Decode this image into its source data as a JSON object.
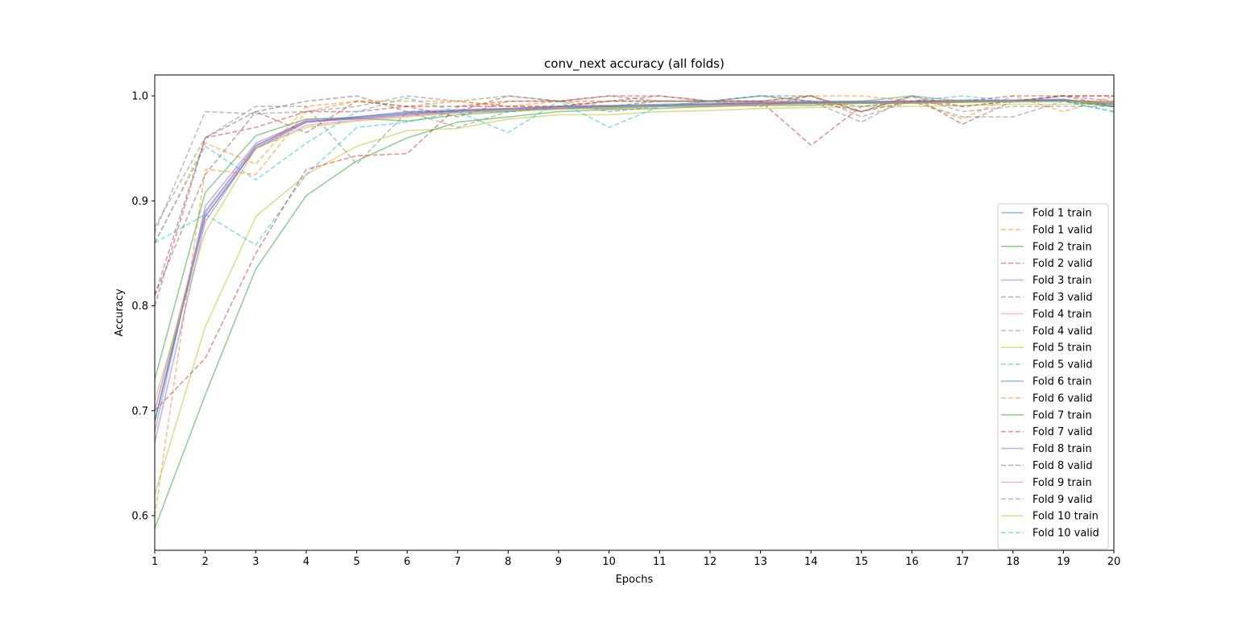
{
  "chart_data": {
    "type": "line",
    "title": "conv_next accuracy (all folds)",
    "xlabel": "Epochs",
    "ylabel": "Accuracy",
    "xlim": [
      1,
      20
    ],
    "ylim": [
      0.567,
      1.02
    ],
    "x_ticks": [
      1,
      2,
      3,
      4,
      5,
      6,
      7,
      8,
      9,
      10,
      11,
      12,
      13,
      14,
      15,
      16,
      17,
      18,
      19,
      20
    ],
    "y_ticks": [
      0.6,
      0.7,
      0.8,
      0.9,
      1.0
    ],
    "y_tick_labels": [
      "0.6",
      "0.7",
      "0.8",
      "0.9",
      "1.0"
    ],
    "grid": false,
    "legend_position": "lower-right",
    "x": [
      1,
      2,
      3,
      4,
      5,
      6,
      7,
      8,
      9,
      10,
      11,
      12,
      13,
      14,
      15,
      16,
      17,
      18,
      19,
      20
    ],
    "series": [
      {
        "name": "Fold 1 train",
        "color": "#1f77b4",
        "style": "solid",
        "values": [
          0.69,
          0.89,
          0.953,
          0.975,
          0.98,
          0.984,
          0.986,
          0.988,
          0.99,
          0.991,
          0.992,
          0.993,
          0.994,
          0.994,
          0.995,
          0.995,
          0.996,
          0.996,
          0.997,
          0.99
        ]
      },
      {
        "name": "Fold 1 valid",
        "color": "#ff7f0e",
        "style": "dashed",
        "values": [
          0.6,
          0.93,
          0.925,
          0.985,
          0.995,
          0.99,
          0.995,
          0.99,
          0.995,
          0.99,
          0.995,
          0.995,
          0.995,
          1.0,
          1.0,
          0.995,
          0.978,
          1.0,
          0.985,
          1.0
        ]
      },
      {
        "name": "Fold 2 train",
        "color": "#2ca02c",
        "style": "solid",
        "values": [
          0.73,
          0.908,
          0.962,
          0.978,
          0.979,
          0.976,
          0.982,
          0.985,
          0.988,
          0.988,
          0.99,
          0.99,
          0.992,
          0.993,
          0.993,
          0.994,
          0.995,
          0.995,
          0.996,
          0.992
        ]
      },
      {
        "name": "Fold 2 valid",
        "color": "#d62728",
        "style": "dashed",
        "values": [
          0.8,
          0.96,
          0.97,
          0.985,
          0.985,
          0.99,
          0.99,
          0.995,
          0.995,
          1.0,
          1.0,
          0.995,
          0.995,
          0.953,
          0.99,
          0.995,
          0.99,
          0.995,
          1.0,
          1.0
        ]
      },
      {
        "name": "Fold 3 train",
        "color": "#9467bd",
        "style": "solid",
        "values": [
          0.68,
          0.895,
          0.955,
          0.976,
          0.978,
          0.982,
          0.985,
          0.987,
          0.988,
          0.99,
          0.991,
          0.992,
          0.993,
          0.994,
          0.994,
          0.995,
          0.995,
          0.996,
          0.996,
          0.993
        ]
      },
      {
        "name": "Fold 3 valid",
        "color": "#8c564b",
        "style": "dashed",
        "values": [
          0.81,
          0.925,
          0.985,
          0.995,
          1.0,
          0.985,
          0.985,
          1.0,
          0.995,
          1.0,
          0.995,
          0.995,
          1.0,
          1.0,
          0.985,
          1.0,
          0.99,
          0.995,
          1.0,
          0.995
        ]
      },
      {
        "name": "Fold 4 train",
        "color": "#e377c2",
        "style": "solid",
        "values": [
          0.7,
          0.885,
          0.95,
          0.972,
          0.977,
          0.981,
          0.984,
          0.986,
          0.988,
          0.989,
          0.99,
          0.991,
          0.992,
          0.993,
          0.993,
          0.994,
          0.994,
          0.995,
          0.995,
          0.994
        ]
      },
      {
        "name": "Fold 4 valid",
        "color": "#7f7f7f",
        "style": "dashed",
        "values": [
          0.87,
          0.985,
          0.983,
          0.985,
          0.99,
          1.0,
          0.995,
          1.0,
          0.995,
          0.985,
          0.99,
          0.995,
          0.99,
          1.0,
          0.98,
          0.995,
          0.98,
          0.98,
          0.995,
          0.99
        ]
      },
      {
        "name": "Fold 5 train",
        "color": "#bcbd22",
        "style": "solid",
        "values": [
          0.62,
          0.78,
          0.885,
          0.925,
          0.952,
          0.967,
          0.969,
          0.978,
          0.982,
          0.982,
          0.985,
          0.986,
          0.988,
          0.989,
          0.99,
          0.99,
          0.991,
          0.992,
          0.992,
          0.993
        ]
      },
      {
        "name": "Fold 5 valid",
        "color": "#17becf",
        "style": "dashed",
        "values": [
          0.86,
          0.887,
          0.858,
          0.925,
          0.97,
          0.975,
          0.985,
          0.985,
          0.99,
          0.99,
          0.995,
          0.995,
          1.0,
          0.995,
          0.99,
          0.995,
          1.0,
          0.995,
          0.995,
          0.985
        ]
      },
      {
        "name": "Fold 6 train",
        "color": "#1f77b4",
        "style": "solid",
        "values": [
          0.69,
          0.885,
          0.95,
          0.975,
          0.979,
          0.983,
          0.986,
          0.987,
          0.989,
          0.99,
          0.991,
          0.992,
          0.993,
          0.993,
          0.994,
          0.994,
          0.995,
          0.995,
          0.996,
          0.992
        ]
      },
      {
        "name": "Fold 6 valid",
        "color": "#ff7f0e",
        "style": "dashed",
        "values": [
          0.86,
          0.955,
          0.935,
          0.99,
          0.995,
          0.995,
          0.995,
          0.99,
          0.99,
          0.995,
          0.995,
          0.995,
          0.995,
          0.995,
          0.995,
          1.0,
          0.995,
          0.995,
          0.995,
          0.995
        ]
      },
      {
        "name": "Fold 7 train",
        "color": "#2ca02c",
        "style": "solid",
        "values": [
          0.588,
          0.715,
          0.835,
          0.905,
          0.938,
          0.96,
          0.975,
          0.98,
          0.985,
          0.987,
          0.988,
          0.99,
          0.991,
          0.991,
          0.993,
          0.993,
          0.994,
          0.995,
          0.995,
          0.99
        ]
      },
      {
        "name": "Fold 7 valid",
        "color": "#d62728",
        "style": "dashed",
        "values": [
          0.7,
          0.75,
          0.85,
          0.93,
          0.943,
          0.945,
          0.99,
          0.99,
          0.99,
          0.995,
          0.995,
          0.995,
          0.995,
          1.0,
          0.985,
          0.995,
          0.995,
          1.0,
          1.0,
          1.0
        ]
      },
      {
        "name": "Fold 8 train",
        "color": "#9467bd",
        "style": "solid",
        "values": [
          0.67,
          0.88,
          0.952,
          0.977,
          0.98,
          0.985,
          0.987,
          0.988,
          0.99,
          0.99,
          0.991,
          0.992,
          0.993,
          0.994,
          0.994,
          0.994,
          0.995,
          0.995,
          0.996,
          0.994
        ]
      },
      {
        "name": "Fold 8 valid",
        "color": "#8c564b",
        "style": "dashed",
        "values": [
          0.81,
          0.96,
          0.985,
          0.965,
          0.995,
          0.99,
          0.98,
          0.995,
          0.995,
          0.995,
          1.0,
          0.995,
          0.995,
          0.995,
          0.985,
          1.0,
          0.973,
          0.995,
          1.0,
          0.99
        ]
      },
      {
        "name": "Fold 9 train",
        "color": "#e377c2",
        "style": "solid",
        "values": [
          0.7,
          0.888,
          0.952,
          0.975,
          0.978,
          0.982,
          0.985,
          0.987,
          0.988,
          0.989,
          0.99,
          0.991,
          0.992,
          0.993,
          0.993,
          0.994,
          0.995,
          0.995,
          0.995,
          0.993
        ]
      },
      {
        "name": "Fold 9 valid",
        "color": "#7f7f7f",
        "style": "dashed",
        "values": [
          0.875,
          0.96,
          0.99,
          0.99,
          0.935,
          0.985,
          0.97,
          0.985,
          0.99,
          0.995,
          0.995,
          0.995,
          1.0,
          0.995,
          0.975,
          1.0,
          0.985,
          0.99,
          0.99,
          0.99
        ]
      },
      {
        "name": "Fold 10 train",
        "color": "#bcbd22",
        "style": "solid",
        "values": [
          0.71,
          0.87,
          0.95,
          0.97,
          0.976,
          0.98,
          0.984,
          0.986,
          0.987,
          0.989,
          0.99,
          0.99,
          0.991,
          0.992,
          0.993,
          0.993,
          0.994,
          0.994,
          0.995,
          0.993
        ]
      },
      {
        "name": "Fold 10 valid",
        "color": "#17becf",
        "style": "dashed",
        "values": [
          0.86,
          0.952,
          0.92,
          0.955,
          0.985,
          0.998,
          0.985,
          0.965,
          0.995,
          0.97,
          0.99,
          0.995,
          1.0,
          0.995,
          0.995,
          1.0,
          0.995,
          0.995,
          0.995,
          0.985
        ]
      }
    ]
  }
}
